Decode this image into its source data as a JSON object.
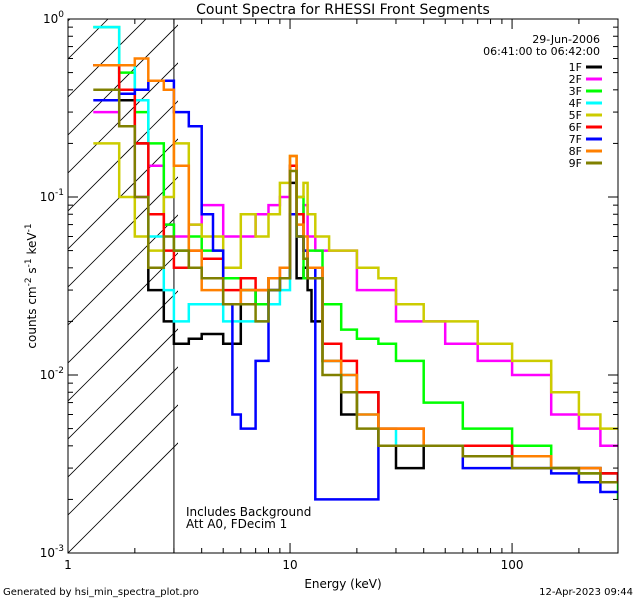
{
  "chart_data": {
    "type": "line",
    "title": "Count Spectra for RHESSI Front Segments",
    "xlabel": "Energy (keV)",
    "ylabel_parts": {
      "a": "counts cm",
      "b": "-2",
      "c": " s",
      "d": "-1",
      "e": " keV",
      "f": "-1"
    },
    "x_scale": "log",
    "y_scale": "log",
    "xlim": [
      1,
      300
    ],
    "ylim": [
      0.001,
      1
    ],
    "x_ticks": [
      {
        "v": 1,
        "label": "1"
      },
      {
        "v": 10,
        "label": "10"
      },
      {
        "v": 100,
        "label": "100"
      }
    ],
    "y_ticks": [
      {
        "v": 0.001,
        "m": "10",
        "e": "-3"
      },
      {
        "v": 0.01,
        "m": "10",
        "e": "-2"
      },
      {
        "v": 0.1,
        "m": "10",
        "e": "-1"
      },
      {
        "v": 1,
        "m": "10",
        "e": "0"
      }
    ],
    "date": "29-Jun-2006",
    "time_range": "06:41:00 to 06:42:00",
    "annotations": [
      "Includes Background",
      "Att A0, FDecim 1"
    ],
    "threshold_line_kev": 3,
    "legend_position": "top-right",
    "series": [
      {
        "name": "1F",
        "color": "#000000"
      },
      {
        "name": "2F",
        "color": "#ff00ff"
      },
      {
        "name": "3F",
        "color": "#00ff00"
      },
      {
        "name": "4F",
        "color": "#00ffff"
      },
      {
        "name": "5F",
        "color": "#cccc00"
      },
      {
        "name": "6F",
        "color": "#ff0000"
      },
      {
        "name": "7F",
        "color": "#0000ff"
      },
      {
        "name": "8F",
        "color": "#ff8000"
      },
      {
        "name": "9F",
        "color": "#808000"
      }
    ],
    "spectra_points": {
      "1F": [
        [
          1.3,
          0.55
        ],
        [
          1.7,
          0.35
        ],
        [
          2.0,
          0.2
        ],
        [
          2.3,
          0.03
        ],
        [
          2.7,
          0.02
        ],
        [
          3.0,
          0.015
        ],
        [
          3.5,
          0.016
        ],
        [
          4.0,
          0.017
        ],
        [
          5.0,
          0.015
        ],
        [
          6.0,
          0.03
        ],
        [
          7.0,
          0.025
        ],
        [
          8.0,
          0.03
        ],
        [
          9.0,
          0.035
        ],
        [
          10.0,
          0.12
        ],
        [
          10.7,
          0.035
        ],
        [
          11.5,
          0.04
        ],
        [
          12.0,
          0.03
        ],
        [
          12.5,
          0.02
        ],
        [
          14.0,
          0.012
        ],
        [
          17.0,
          0.006
        ],
        [
          20.0,
          0.008
        ],
        [
          25.0,
          0.004
        ],
        [
          30.0,
          0.003
        ],
        [
          40.0,
          0.004
        ],
        [
          60.0,
          0.004
        ],
        [
          100.0,
          0.0035
        ],
        [
          150.0,
          0.003
        ],
        [
          200.0,
          0.003
        ],
        [
          250.0,
          0.0028
        ],
        [
          300.0,
          0.0025
        ]
      ],
      "2F": [
        [
          1.3,
          0.3
        ],
        [
          1.7,
          0.25
        ],
        [
          2.0,
          0.1
        ],
        [
          2.3,
          0.15
        ],
        [
          2.7,
          0.07
        ],
        [
          3.0,
          0.06
        ],
        [
          3.5,
          0.07
        ],
        [
          4.0,
          0.09
        ],
        [
          5.0,
          0.06
        ],
        [
          6.0,
          0.06
        ],
        [
          7.0,
          0.08
        ],
        [
          8.0,
          0.09
        ],
        [
          9.0,
          0.1
        ],
        [
          10.0,
          0.15
        ],
        [
          10.7,
          0.08
        ],
        [
          11.5,
          0.09
        ],
        [
          12.0,
          0.06
        ],
        [
          13.0,
          0.05
        ],
        [
          15.0,
          0.05
        ],
        [
          20.0,
          0.03
        ],
        [
          25.0,
          0.03
        ],
        [
          30.0,
          0.02
        ],
        [
          40.0,
          0.02
        ],
        [
          50.0,
          0.015
        ],
        [
          70.0,
          0.012
        ],
        [
          100.0,
          0.01
        ],
        [
          150.0,
          0.006
        ],
        [
          200.0,
          0.005
        ],
        [
          250.0,
          0.004
        ],
        [
          300.0,
          0.004
        ]
      ],
      "3F": [
        [
          1.3,
          0.9
        ],
        [
          1.7,
          0.5
        ],
        [
          2.0,
          0.3
        ],
        [
          2.3,
          0.2
        ],
        [
          2.7,
          0.07
        ],
        [
          3.0,
          0.05
        ],
        [
          3.5,
          0.06
        ],
        [
          4.0,
          0.05
        ],
        [
          5.0,
          0.035
        ],
        [
          6.0,
          0.03
        ],
        [
          7.0,
          0.025
        ],
        [
          8.0,
          0.035
        ],
        [
          9.0,
          0.035
        ],
        [
          10.0,
          0.15
        ],
        [
          10.7,
          0.1
        ],
        [
          11.5,
          0.035
        ],
        [
          12.0,
          0.05
        ],
        [
          14.0,
          0.025
        ],
        [
          17.0,
          0.018
        ],
        [
          20.0,
          0.016
        ],
        [
          25.0,
          0.015
        ],
        [
          30.0,
          0.012
        ],
        [
          40.0,
          0.007
        ],
        [
          60.0,
          0.005
        ],
        [
          100.0,
          0.004
        ],
        [
          150.0,
          0.003
        ],
        [
          200.0,
          0.0028
        ],
        [
          250.0,
          0.0025
        ],
        [
          300.0,
          0.002
        ]
      ],
      "4F": [
        [
          1.3,
          0.9
        ],
        [
          1.7,
          0.55
        ],
        [
          2.0,
          0.35
        ],
        [
          2.3,
          0.06
        ],
        [
          2.7,
          0.03
        ],
        [
          3.0,
          0.02
        ],
        [
          3.5,
          0.025
        ],
        [
          4.0,
          0.025
        ],
        [
          5.0,
          0.02
        ],
        [
          6.0,
          0.02
        ],
        [
          7.0,
          0.02
        ],
        [
          8.0,
          0.025
        ],
        [
          9.0,
          0.03
        ],
        [
          10.0,
          0.15
        ],
        [
          10.7,
          0.06
        ],
        [
          11.5,
          0.05
        ],
        [
          12.0,
          0.04
        ],
        [
          14.0,
          0.012
        ],
        [
          17.0,
          0.01
        ],
        [
          20.0,
          0.006
        ],
        [
          25.0,
          0.005
        ],
        [
          30.0,
          0.004
        ],
        [
          40.0,
          0.004
        ],
        [
          60.0,
          0.0035
        ],
        [
          100.0,
          0.0035
        ],
        [
          150.0,
          0.003
        ],
        [
          200.0,
          0.003
        ],
        [
          250.0,
          0.0025
        ],
        [
          300.0,
          0.0025
        ]
      ],
      "5F": [
        [
          1.3,
          0.2
        ],
        [
          1.7,
          0.1
        ],
        [
          2.0,
          0.06
        ],
        [
          2.3,
          0.05
        ],
        [
          2.7,
          0.1
        ],
        [
          3.0,
          0.2
        ],
        [
          3.5,
          0.07
        ],
        [
          4.0,
          0.06
        ],
        [
          5.0,
          0.04
        ],
        [
          6.0,
          0.08
        ],
        [
          7.0,
          0.06
        ],
        [
          8.0,
          0.08
        ],
        [
          9.0,
          0.12
        ],
        [
          10.0,
          0.17
        ],
        [
          10.7,
          0.1
        ],
        [
          11.5,
          0.12
        ],
        [
          12.0,
          0.08
        ],
        [
          13.0,
          0.06
        ],
        [
          15.0,
          0.05
        ],
        [
          20.0,
          0.04
        ],
        [
          25.0,
          0.035
        ],
        [
          30.0,
          0.025
        ],
        [
          40.0,
          0.02
        ],
        [
          50.0,
          0.02
        ],
        [
          70.0,
          0.015
        ],
        [
          100.0,
          0.012
        ],
        [
          150.0,
          0.008
        ],
        [
          200.0,
          0.006
        ],
        [
          250.0,
          0.005
        ],
        [
          300.0,
          0.005
        ]
      ],
      "6F": [
        [
          1.3,
          0.55
        ],
        [
          1.7,
          0.4
        ],
        [
          2.0,
          0.2
        ],
        [
          2.3,
          0.08
        ],
        [
          2.7,
          0.05
        ],
        [
          3.0,
          0.04
        ],
        [
          3.5,
          0.05
        ],
        [
          4.0,
          0.045
        ],
        [
          5.0,
          0.03
        ],
        [
          6.0,
          0.035
        ],
        [
          7.0,
          0.03
        ],
        [
          8.0,
          0.035
        ],
        [
          9.0,
          0.04
        ],
        [
          10.0,
          0.15
        ],
        [
          10.7,
          0.08
        ],
        [
          11.5,
          0.05
        ],
        [
          12.0,
          0.04
        ],
        [
          14.0,
          0.015
        ],
        [
          17.0,
          0.012
        ],
        [
          20.0,
          0.008
        ],
        [
          25.0,
          0.005
        ],
        [
          30.0,
          0.005
        ],
        [
          40.0,
          0.004
        ],
        [
          60.0,
          0.004
        ],
        [
          100.0,
          0.0035
        ],
        [
          150.0,
          0.003
        ],
        [
          200.0,
          0.003
        ],
        [
          250.0,
          0.0028
        ],
        [
          300.0,
          0.0025
        ]
      ],
      "7F": [
        [
          1.3,
          0.35
        ],
        [
          1.7,
          0.38
        ],
        [
          2.0,
          0.4
        ],
        [
          2.3,
          0.45
        ],
        [
          2.7,
          0.45
        ],
        [
          3.0,
          0.3
        ],
        [
          3.5,
          0.25
        ],
        [
          4.0,
          0.08
        ],
        [
          4.5,
          0.05
        ],
        [
          5.0,
          0.025
        ],
        [
          5.5,
          0.006
        ],
        [
          6.0,
          0.005
        ],
        [
          7.0,
          0.012
        ],
        [
          8.0,
          0.03
        ],
        [
          9.0,
          0.035
        ],
        [
          10.0,
          0.08
        ],
        [
          10.7,
          0.06
        ],
        [
          11.5,
          0.05
        ],
        [
          12.0,
          0.04
        ],
        [
          13.0,
          0.002
        ],
        [
          14.0,
          0.002
        ],
        [
          17.0,
          0.002
        ],
        [
          20.0,
          0.002
        ],
        [
          25.0,
          0.004
        ],
        [
          30.0,
          0.004
        ],
        [
          40.0,
          0.004
        ],
        [
          60.0,
          0.003
        ],
        [
          100.0,
          0.003
        ],
        [
          150.0,
          0.0028
        ],
        [
          200.0,
          0.0025
        ],
        [
          250.0,
          0.0022
        ],
        [
          300.0,
          0.0022
        ]
      ],
      "8F": [
        [
          1.3,
          0.55
        ],
        [
          1.7,
          0.55
        ],
        [
          2.0,
          0.6
        ],
        [
          2.3,
          0.45
        ],
        [
          2.7,
          0.4
        ],
        [
          3.0,
          0.15
        ],
        [
          3.5,
          0.05
        ],
        [
          4.0,
          0.03
        ],
        [
          5.0,
          0.025
        ],
        [
          6.0,
          0.03
        ],
        [
          7.0,
          0.03
        ],
        [
          8.0,
          0.035
        ],
        [
          9.0,
          0.04
        ],
        [
          10.0,
          0.17
        ],
        [
          10.7,
          0.07
        ],
        [
          11.5,
          0.06
        ],
        [
          12.0,
          0.04
        ],
        [
          14.0,
          0.012
        ],
        [
          17.0,
          0.01
        ],
        [
          20.0,
          0.006
        ],
        [
          25.0,
          0.005
        ],
        [
          30.0,
          0.005
        ],
        [
          40.0,
          0.004
        ],
        [
          60.0,
          0.0035
        ],
        [
          100.0,
          0.0035
        ],
        [
          150.0,
          0.003
        ],
        [
          200.0,
          0.003
        ],
        [
          250.0,
          0.0025
        ],
        [
          300.0,
          0.0025
        ]
      ],
      "9F": [
        [
          1.3,
          0.4
        ],
        [
          1.7,
          0.25
        ],
        [
          2.0,
          0.1
        ],
        [
          2.3,
          0.04
        ],
        [
          2.7,
          0.06
        ],
        [
          3.0,
          0.05
        ],
        [
          3.5,
          0.04
        ],
        [
          4.0,
          0.035
        ],
        [
          5.0,
          0.025
        ],
        [
          6.0,
          0.025
        ],
        [
          7.0,
          0.02
        ],
        [
          8.0,
          0.03
        ],
        [
          9.0,
          0.035
        ],
        [
          10.0,
          0.14
        ],
        [
          10.7,
          0.06
        ],
        [
          11.5,
          0.045
        ],
        [
          12.0,
          0.035
        ],
        [
          14.0,
          0.01
        ],
        [
          17.0,
          0.008
        ],
        [
          20.0,
          0.005
        ],
        [
          25.0,
          0.004
        ],
        [
          30.0,
          0.004
        ],
        [
          40.0,
          0.004
        ],
        [
          60.0,
          0.0035
        ],
        [
          100.0,
          0.003
        ],
        [
          150.0,
          0.003
        ],
        [
          200.0,
          0.0028
        ],
        [
          250.0,
          0.0025
        ],
        [
          300.0,
          0.0025
        ]
      ]
    }
  },
  "footer": {
    "generator": "Generated by hsi_min_spectra_plot.pro",
    "timestamp": "12-Apr-2023 09:44"
  }
}
